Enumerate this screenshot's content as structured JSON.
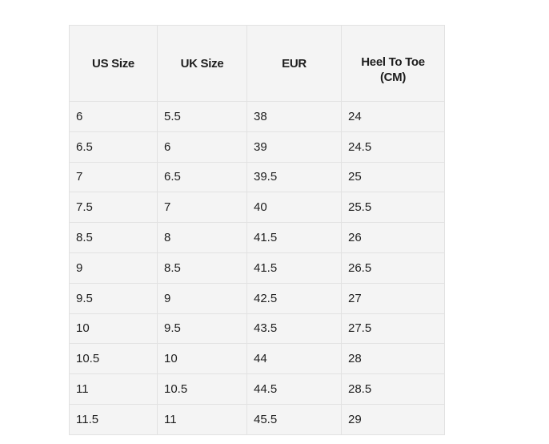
{
  "table": {
    "headers": [
      "US Size",
      "UK Size",
      "EUR",
      "Heel To Toe (CM)"
    ],
    "rows": [
      [
        "6",
        "5.5",
        "38",
        "24"
      ],
      [
        "6.5",
        "6",
        "39",
        "24.5"
      ],
      [
        "7",
        "6.5",
        "39.5",
        "25"
      ],
      [
        "7.5",
        "7",
        "40",
        "25.5"
      ],
      [
        "8.5",
        "8",
        "41.5",
        "26"
      ],
      [
        "9",
        "8.5",
        "41.5",
        "26.5"
      ],
      [
        "9.5",
        "9",
        "42.5",
        "27"
      ],
      [
        "10",
        "9.5",
        "43.5",
        "27.5"
      ],
      [
        "10.5",
        "10",
        "44",
        "28"
      ],
      [
        "11",
        "10.5",
        "44.5",
        "28.5"
      ],
      [
        "11.5",
        "11",
        "45.5",
        "29"
      ]
    ]
  }
}
